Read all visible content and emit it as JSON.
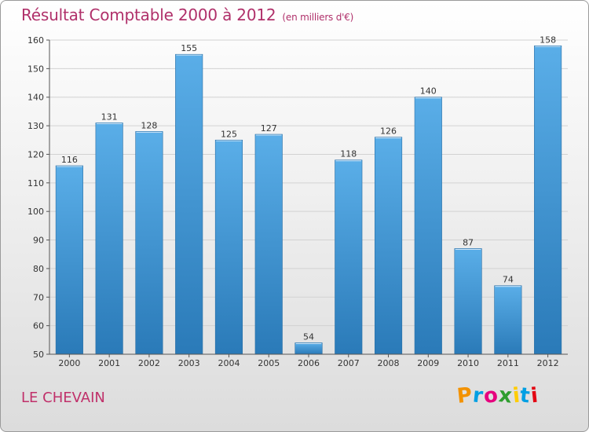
{
  "title": "Résultat Comptable 2000 à 2012",
  "subtitle": "(en milliers d'€)",
  "commune": "LE CHEVAIN",
  "logo": {
    "text": "Proxiti",
    "colors": [
      "#f39200",
      "#009fe3",
      "#e6007e",
      "#2e9d2e",
      "#ffcc00",
      "#009fe3",
      "#e30613"
    ]
  },
  "colors": {
    "bar_top": "#5aaee8",
    "bar_bottom": "#2a7ab8",
    "title": "#b0306a"
  },
  "chart_data": {
    "type": "bar",
    "categories": [
      "2000",
      "2001",
      "2002",
      "2003",
      "2004",
      "2005",
      "2006",
      "2007",
      "2008",
      "2009",
      "2010",
      "2011",
      "2012"
    ],
    "values": [
      116,
      131,
      128,
      155,
      125,
      127,
      54,
      118,
      126,
      140,
      87,
      74,
      158
    ],
    "ylim": [
      50,
      160
    ],
    "yticks": [
      50,
      60,
      70,
      80,
      90,
      100,
      110,
      120,
      130,
      140,
      150,
      160
    ],
    "grid": true
  }
}
